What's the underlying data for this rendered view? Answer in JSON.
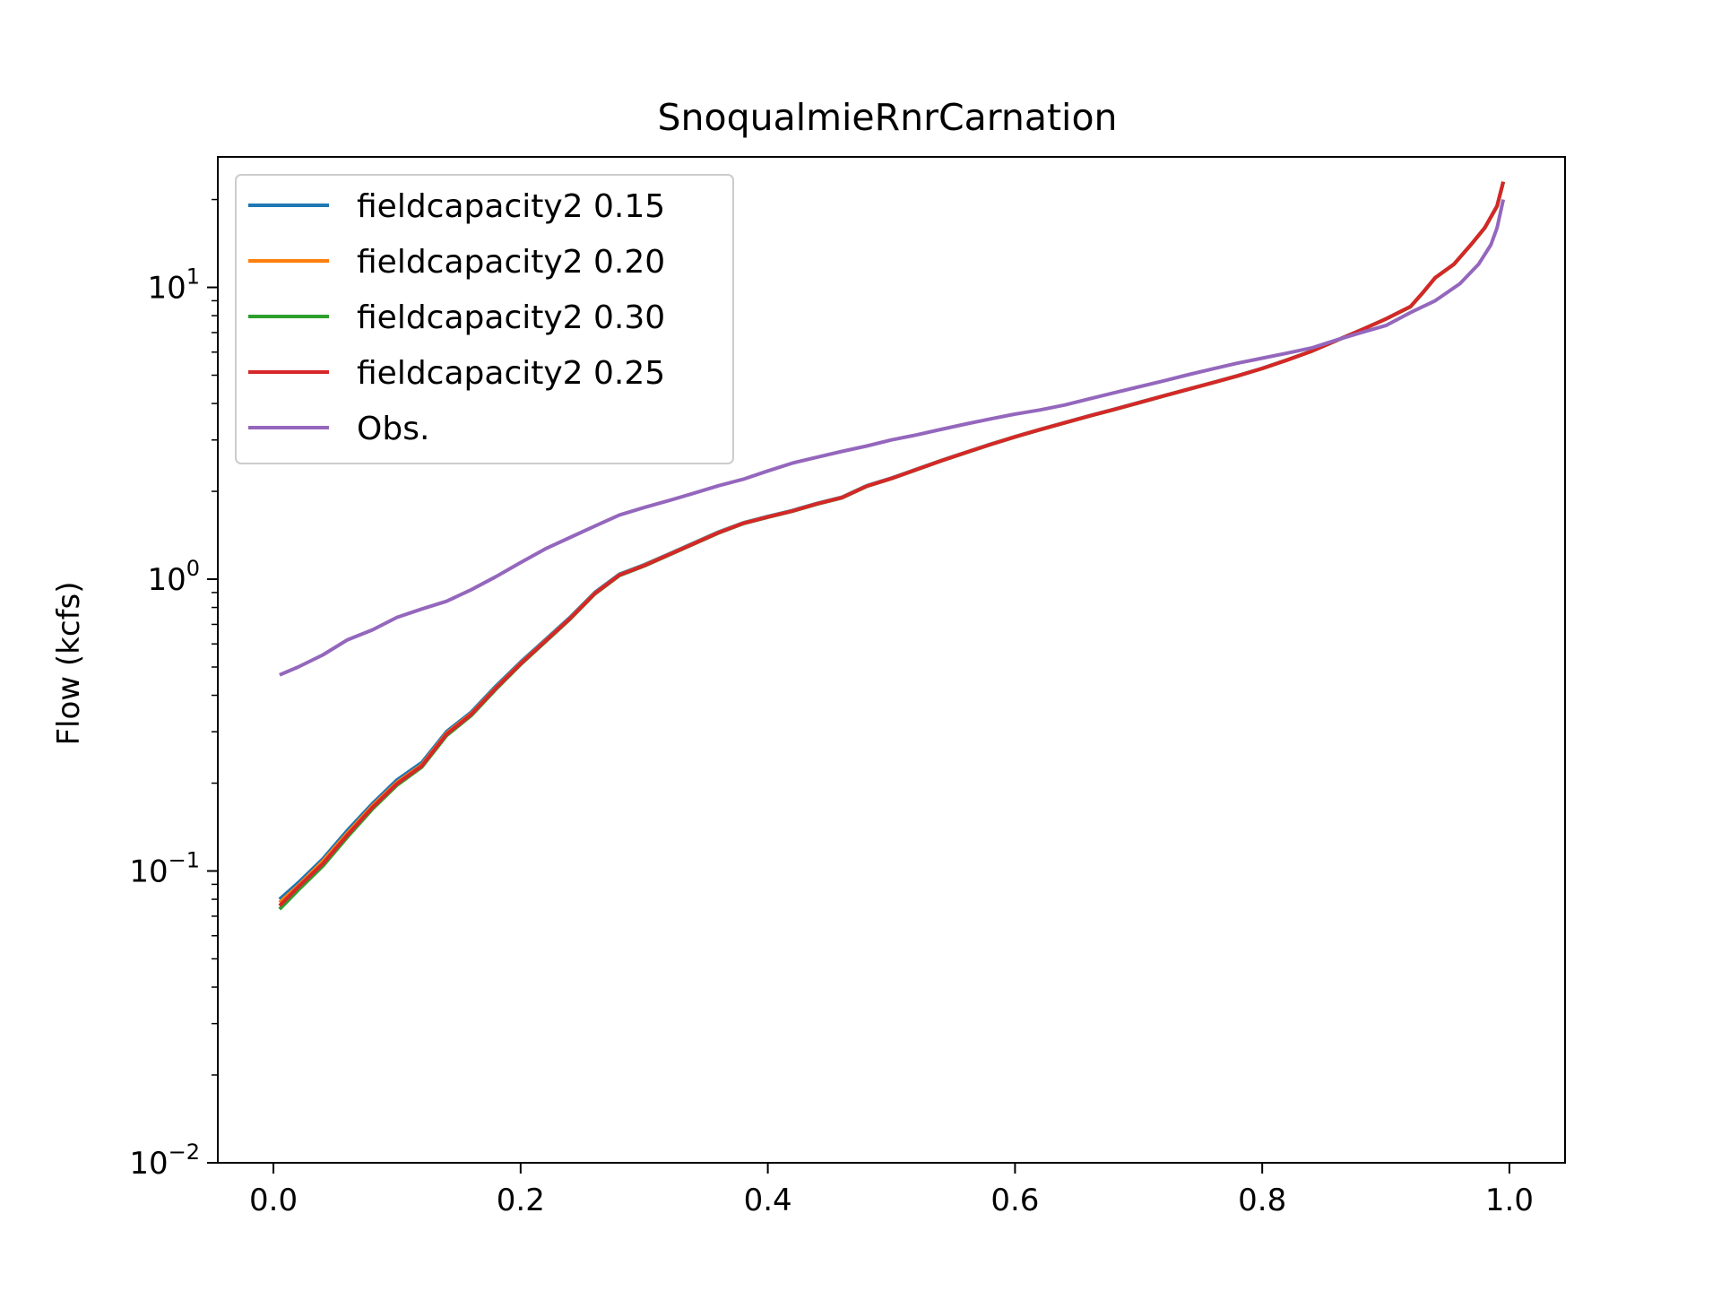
{
  "chart_data": {
    "type": "line",
    "title": "SnoqualmieRnrCarnation",
    "xlabel": "",
    "ylabel": "Flow (kcfs)",
    "yscale": "log",
    "xlim": [
      -0.045,
      1.045
    ],
    "ylim": [
      0.01,
      28
    ],
    "grid": false,
    "legend_position": "top-left",
    "x_ticks": [
      {
        "value": 0.0,
        "label": "0.0"
      },
      {
        "value": 0.2,
        "label": "0.2"
      },
      {
        "value": 0.4,
        "label": "0.4"
      },
      {
        "value": 0.6,
        "label": "0.6"
      },
      {
        "value": 0.8,
        "label": "0.8"
      },
      {
        "value": 1.0,
        "label": "1.0"
      }
    ],
    "y_ticks": [
      {
        "value": 0.01,
        "base": "10",
        "exp": "−2"
      },
      {
        "value": 0.1,
        "base": "10",
        "exp": "−1"
      },
      {
        "value": 1,
        "base": "10",
        "exp": "0"
      },
      {
        "value": 10,
        "base": "10",
        "exp": "1"
      }
    ],
    "series": [
      {
        "name": "fieldcapacity2 0.15",
        "color": "#1f77b4",
        "points": [
          [
            0.005,
            0.08
          ],
          [
            0.02,
            0.091
          ],
          [
            0.04,
            0.11
          ],
          [
            0.06,
            0.138
          ],
          [
            0.08,
            0.17
          ],
          [
            0.1,
            0.205
          ],
          [
            0.12,
            0.235
          ],
          [
            0.14,
            0.3
          ],
          [
            0.16,
            0.35
          ],
          [
            0.18,
            0.43
          ],
          [
            0.2,
            0.52
          ],
          [
            0.22,
            0.62
          ],
          [
            0.24,
            0.74
          ],
          [
            0.26,
            0.9
          ],
          [
            0.28,
            1.04
          ],
          [
            0.3,
            1.12
          ],
          [
            0.32,
            1.22
          ],
          [
            0.34,
            1.33
          ],
          [
            0.36,
            1.45
          ],
          [
            0.38,
            1.56
          ],
          [
            0.4,
            1.64
          ],
          [
            0.42,
            1.72
          ],
          [
            0.44,
            1.82
          ],
          [
            0.46,
            1.91
          ],
          [
            0.48,
            2.09
          ],
          [
            0.5,
            2.22
          ],
          [
            0.52,
            2.38
          ],
          [
            0.54,
            2.55
          ],
          [
            0.56,
            2.72
          ],
          [
            0.58,
            2.9
          ],
          [
            0.6,
            3.08
          ],
          [
            0.62,
            3.26
          ],
          [
            0.64,
            3.44
          ],
          [
            0.66,
            3.63
          ],
          [
            0.68,
            3.82
          ],
          [
            0.7,
            4.03
          ],
          [
            0.72,
            4.25
          ],
          [
            0.74,
            4.48
          ],
          [
            0.76,
            4.72
          ],
          [
            0.78,
            4.98
          ],
          [
            0.8,
            5.28
          ],
          [
            0.82,
            5.64
          ],
          [
            0.84,
            6.05
          ],
          [
            0.86,
            6.58
          ],
          [
            0.88,
            7.15
          ],
          [
            0.9,
            7.8
          ],
          [
            0.92,
            8.6
          ],
          [
            0.93,
            9.6
          ],
          [
            0.94,
            10.8
          ],
          [
            0.955,
            12.0
          ],
          [
            0.97,
            14.2
          ],
          [
            0.98,
            16.0
          ],
          [
            0.99,
            19.0
          ],
          [
            0.995,
            23.0
          ]
        ]
      },
      {
        "name": "fieldcapacity2 0.20",
        "color": "#ff7f0e",
        "points": [
          [
            0.005,
            0.078
          ],
          [
            0.02,
            0.089
          ],
          [
            0.04,
            0.108
          ],
          [
            0.06,
            0.135
          ],
          [
            0.08,
            0.167
          ],
          [
            0.1,
            0.201
          ],
          [
            0.12,
            0.231
          ],
          [
            0.14,
            0.296
          ],
          [
            0.16,
            0.346
          ],
          [
            0.18,
            0.425
          ],
          [
            0.2,
            0.515
          ],
          [
            0.22,
            0.615
          ],
          [
            0.24,
            0.735
          ],
          [
            0.26,
            0.895
          ],
          [
            0.28,
            1.035
          ],
          [
            0.3,
            1.115
          ],
          [
            0.32,
            1.215
          ],
          [
            0.34,
            1.325
          ],
          [
            0.36,
            1.445
          ],
          [
            0.38,
            1.555
          ],
          [
            0.4,
            1.635
          ],
          [
            0.42,
            1.715
          ],
          [
            0.44,
            1.815
          ],
          [
            0.46,
            1.905
          ],
          [
            0.48,
            2.085
          ],
          [
            0.5,
            2.215
          ],
          [
            0.52,
            2.375
          ],
          [
            0.54,
            2.545
          ],
          [
            0.56,
            2.715
          ],
          [
            0.58,
            2.895
          ],
          [
            0.6,
            3.075
          ],
          [
            0.62,
            3.255
          ],
          [
            0.64,
            3.435
          ],
          [
            0.66,
            3.625
          ],
          [
            0.68,
            3.815
          ],
          [
            0.7,
            4.025
          ],
          [
            0.72,
            4.245
          ],
          [
            0.74,
            4.475
          ],
          [
            0.76,
            4.715
          ],
          [
            0.78,
            4.975
          ],
          [
            0.8,
            5.275
          ],
          [
            0.82,
            5.635
          ],
          [
            0.84,
            6.045
          ],
          [
            0.86,
            6.575
          ],
          [
            0.88,
            7.145
          ],
          [
            0.9,
            7.795
          ],
          [
            0.92,
            8.59
          ],
          [
            0.93,
            9.59
          ],
          [
            0.94,
            10.79
          ],
          [
            0.955,
            11.99
          ],
          [
            0.97,
            14.19
          ],
          [
            0.98,
            15.99
          ],
          [
            0.99,
            18.99
          ],
          [
            0.995,
            22.99
          ]
        ]
      },
      {
        "name": "fieldcapacity2 0.30",
        "color": "#2ca02c",
        "points": [
          [
            0.005,
            0.074
          ],
          [
            0.02,
            0.086
          ],
          [
            0.04,
            0.104
          ],
          [
            0.06,
            0.131
          ],
          [
            0.08,
            0.163
          ],
          [
            0.1,
            0.197
          ],
          [
            0.12,
            0.227
          ],
          [
            0.14,
            0.291
          ],
          [
            0.16,
            0.341
          ],
          [
            0.18,
            0.42
          ],
          [
            0.2,
            0.51
          ],
          [
            0.22,
            0.61
          ],
          [
            0.24,
            0.73
          ],
          [
            0.26,
            0.89
          ],
          [
            0.28,
            1.03
          ],
          [
            0.3,
            1.11
          ],
          [
            0.32,
            1.21
          ],
          [
            0.34,
            1.32
          ],
          [
            0.36,
            1.44
          ],
          [
            0.38,
            1.55
          ],
          [
            0.4,
            1.63
          ],
          [
            0.42,
            1.71
          ],
          [
            0.44,
            1.81
          ],
          [
            0.46,
            1.9
          ],
          [
            0.48,
            2.08
          ],
          [
            0.5,
            2.21
          ],
          [
            0.52,
            2.37
          ],
          [
            0.54,
            2.54
          ],
          [
            0.56,
            2.71
          ],
          [
            0.58,
            2.89
          ],
          [
            0.6,
            3.07
          ],
          [
            0.62,
            3.25
          ],
          [
            0.64,
            3.43
          ],
          [
            0.66,
            3.62
          ],
          [
            0.68,
            3.81
          ],
          [
            0.7,
            4.02
          ],
          [
            0.72,
            4.24
          ],
          [
            0.74,
            4.47
          ],
          [
            0.76,
            4.71
          ],
          [
            0.78,
            4.97
          ],
          [
            0.8,
            5.27
          ],
          [
            0.82,
            5.63
          ],
          [
            0.84,
            6.04
          ],
          [
            0.86,
            6.57
          ],
          [
            0.88,
            7.14
          ],
          [
            0.9,
            7.79
          ],
          [
            0.92,
            8.58
          ],
          [
            0.93,
            9.58
          ],
          [
            0.94,
            10.78
          ],
          [
            0.955,
            11.98
          ],
          [
            0.97,
            14.18
          ],
          [
            0.98,
            15.98
          ],
          [
            0.99,
            18.98
          ],
          [
            0.995,
            22.98
          ]
        ]
      },
      {
        "name": "fieldcapacity2 0.25",
        "color": "#d62728",
        "points": [
          [
            0.005,
            0.076
          ],
          [
            0.02,
            0.088
          ],
          [
            0.04,
            0.106
          ],
          [
            0.06,
            0.133
          ],
          [
            0.08,
            0.165
          ],
          [
            0.1,
            0.199
          ],
          [
            0.12,
            0.229
          ],
          [
            0.14,
            0.294
          ],
          [
            0.16,
            0.344
          ],
          [
            0.18,
            0.423
          ],
          [
            0.2,
            0.513
          ],
          [
            0.22,
            0.613
          ],
          [
            0.24,
            0.733
          ],
          [
            0.26,
            0.893
          ],
          [
            0.28,
            1.033
          ],
          [
            0.3,
            1.113
          ],
          [
            0.32,
            1.213
          ],
          [
            0.34,
            1.323
          ],
          [
            0.36,
            1.443
          ],
          [
            0.38,
            1.553
          ],
          [
            0.4,
            1.633
          ],
          [
            0.42,
            1.713
          ],
          [
            0.44,
            1.813
          ],
          [
            0.46,
            1.903
          ],
          [
            0.48,
            2.083
          ],
          [
            0.5,
            2.213
          ],
          [
            0.52,
            2.373
          ],
          [
            0.54,
            2.543
          ],
          [
            0.56,
            2.713
          ],
          [
            0.58,
            2.893
          ],
          [
            0.6,
            3.073
          ],
          [
            0.62,
            3.253
          ],
          [
            0.64,
            3.433
          ],
          [
            0.66,
            3.623
          ],
          [
            0.68,
            3.813
          ],
          [
            0.7,
            4.023
          ],
          [
            0.72,
            4.243
          ],
          [
            0.74,
            4.473
          ],
          [
            0.76,
            4.713
          ],
          [
            0.78,
            4.973
          ],
          [
            0.8,
            5.273
          ],
          [
            0.82,
            5.633
          ],
          [
            0.84,
            6.043
          ],
          [
            0.86,
            6.573
          ],
          [
            0.88,
            7.143
          ],
          [
            0.9,
            7.793
          ],
          [
            0.92,
            8.6
          ],
          [
            0.93,
            9.6
          ],
          [
            0.94,
            10.8
          ],
          [
            0.955,
            12.0
          ],
          [
            0.97,
            14.2
          ],
          [
            0.98,
            16.0
          ],
          [
            0.99,
            19.0
          ],
          [
            0.995,
            23.0
          ]
        ]
      },
      {
        "name": "Obs.",
        "color": "#9467bd",
        "points": [
          [
            0.005,
            0.47
          ],
          [
            0.02,
            0.5
          ],
          [
            0.04,
            0.55
          ],
          [
            0.06,
            0.62
          ],
          [
            0.08,
            0.67
          ],
          [
            0.1,
            0.74
          ],
          [
            0.12,
            0.79
          ],
          [
            0.14,
            0.84
          ],
          [
            0.16,
            0.92
          ],
          [
            0.18,
            1.02
          ],
          [
            0.2,
            1.14
          ],
          [
            0.22,
            1.27
          ],
          [
            0.24,
            1.39
          ],
          [
            0.26,
            1.52
          ],
          [
            0.28,
            1.66
          ],
          [
            0.3,
            1.76
          ],
          [
            0.32,
            1.86
          ],
          [
            0.34,
            1.97
          ],
          [
            0.36,
            2.09
          ],
          [
            0.38,
            2.2
          ],
          [
            0.4,
            2.35
          ],
          [
            0.42,
            2.5
          ],
          [
            0.44,
            2.62
          ],
          [
            0.46,
            2.74
          ],
          [
            0.48,
            2.86
          ],
          [
            0.5,
            3.0
          ],
          [
            0.52,
            3.12
          ],
          [
            0.54,
            3.26
          ],
          [
            0.56,
            3.4
          ],
          [
            0.58,
            3.54
          ],
          [
            0.6,
            3.68
          ],
          [
            0.62,
            3.8
          ],
          [
            0.64,
            3.95
          ],
          [
            0.66,
            4.15
          ],
          [
            0.68,
            4.35
          ],
          [
            0.7,
            4.56
          ],
          [
            0.72,
            4.78
          ],
          [
            0.74,
            5.02
          ],
          [
            0.76,
            5.26
          ],
          [
            0.78,
            5.5
          ],
          [
            0.8,
            5.72
          ],
          [
            0.82,
            5.95
          ],
          [
            0.84,
            6.2
          ],
          [
            0.86,
            6.6
          ],
          [
            0.88,
            7.0
          ],
          [
            0.9,
            7.4
          ],
          [
            0.92,
            8.2
          ],
          [
            0.94,
            9.0
          ],
          [
            0.96,
            10.3
          ],
          [
            0.975,
            12.0
          ],
          [
            0.985,
            14.0
          ],
          [
            0.99,
            16.0
          ],
          [
            0.995,
            20.0
          ]
        ]
      }
    ]
  }
}
